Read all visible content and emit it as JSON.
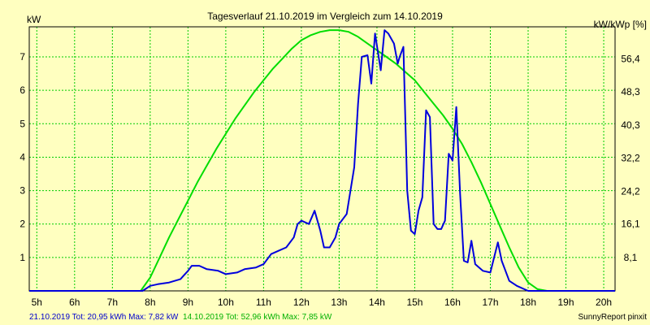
{
  "chart_data": {
    "type": "line",
    "title": "Tagesverlauf 21.10.2019 im Vergleich zum 14.10.2019",
    "ylabel_left": "kW",
    "ylabel_right": "kW/kWp [%]",
    "x_ticks": [
      "5h",
      "6h",
      "7h",
      "8h",
      "9h",
      "10h",
      "11h",
      "12h",
      "13h",
      "14h",
      "15h",
      "16h",
      "17h",
      "18h",
      "19h",
      "20h"
    ],
    "xlim": [
      4.8,
      20.3
    ],
    "ylim": [
      0,
      7.9
    ],
    "y_ticks_left": [
      1,
      2,
      3,
      4,
      5,
      6,
      7
    ],
    "y_ticks_right": [
      {
        "value": 1.0,
        "label": "8,1"
      },
      {
        "value": 2.0,
        "label": "16,1"
      },
      {
        "value": 2.98,
        "label": "24,2"
      },
      {
        "value": 3.97,
        "label": "32,2"
      },
      {
        "value": 4.96,
        "label": "40,3"
      },
      {
        "value": 5.95,
        "label": "48,3"
      },
      {
        "value": 6.94,
        "label": "56,4"
      }
    ],
    "grid": true,
    "series": [
      {
        "color": "#00dd00",
        "x": [
          4.8,
          7.0,
          7.75,
          8.0,
          8.25,
          8.5,
          8.75,
          9.0,
          9.25,
          9.5,
          9.75,
          10.0,
          10.25,
          10.5,
          10.75,
          11.0,
          11.25,
          11.5,
          11.75,
          12.0,
          12.25,
          12.5,
          12.75,
          13.0,
          13.25,
          13.5,
          13.75,
          14.0,
          14.25,
          14.5,
          14.75,
          15.0,
          15.25,
          15.5,
          15.75,
          16.0,
          16.25,
          16.5,
          16.75,
          17.0,
          17.25,
          17.5,
          17.75,
          18.0,
          18.25,
          18.5,
          18.75,
          19.0,
          20.3
        ],
        "values": [
          0,
          0,
          0,
          0.4,
          1.0,
          1.6,
          2.15,
          2.7,
          3.25,
          3.75,
          4.25,
          4.7,
          5.15,
          5.55,
          5.95,
          6.3,
          6.65,
          6.95,
          7.25,
          7.5,
          7.65,
          7.75,
          7.8,
          7.8,
          7.75,
          7.6,
          7.4,
          7.2,
          7.0,
          6.8,
          6.55,
          6.3,
          5.95,
          5.6,
          5.25,
          4.85,
          4.4,
          3.85,
          3.25,
          2.6,
          1.95,
          1.3,
          0.7,
          0.25,
          0.05,
          0,
          0,
          0,
          0
        ]
      },
      {
        "color": "#0000dd",
        "x": [
          4.8,
          7.8,
          8.0,
          8.2,
          8.5,
          8.8,
          9.0,
          9.1,
          9.3,
          9.5,
          9.8,
          10.0,
          10.3,
          10.5,
          10.8,
          11.0,
          11.2,
          11.4,
          11.6,
          11.8,
          11.9,
          12.0,
          12.2,
          12.35,
          12.5,
          12.6,
          12.75,
          12.9,
          13.0,
          13.2,
          13.4,
          13.5,
          13.6,
          13.75,
          13.85,
          13.95,
          14.1,
          14.2,
          14.3,
          14.45,
          14.55,
          14.6,
          14.7,
          14.8,
          14.9,
          15.0,
          15.1,
          15.2,
          15.3,
          15.4,
          15.5,
          15.6,
          15.7,
          15.8,
          15.9,
          16.0,
          16.1,
          16.2,
          16.3,
          16.4,
          16.5,
          16.6,
          16.8,
          17.0,
          17.2,
          17.3,
          17.5,
          17.7,
          18.0,
          18.3,
          20.3
        ],
        "values": [
          0,
          0,
          0.15,
          0.2,
          0.25,
          0.35,
          0.6,
          0.75,
          0.75,
          0.65,
          0.6,
          0.5,
          0.55,
          0.65,
          0.7,
          0.8,
          1.1,
          1.2,
          1.3,
          1.6,
          2.0,
          2.1,
          2.0,
          2.4,
          1.8,
          1.3,
          1.3,
          1.6,
          2.0,
          2.3,
          3.7,
          5.6,
          7.0,
          7.05,
          6.2,
          7.7,
          6.6,
          7.8,
          7.7,
          7.4,
          6.8,
          7.0,
          7.3,
          3.0,
          1.8,
          1.7,
          2.4,
          2.8,
          5.4,
          5.2,
          2.0,
          1.85,
          1.85,
          2.1,
          4.1,
          3.9,
          5.5,
          2.9,
          0.9,
          0.85,
          1.5,
          0.8,
          0.6,
          0.55,
          1.45,
          0.9,
          0.3,
          0.15,
          0,
          0,
          0
        ]
      }
    ]
  },
  "footer": {
    "left_blue": "21.10.2019 Tot: 20,95 kWh Max: 7,82 kW",
    "left_green": "14.10.2019 Tot: 52,96 kWh Max: 7,85 kW",
    "right": "SunnyReport pinxit"
  },
  "colors": {
    "background": "#ffffc0",
    "grid": "#00cc00",
    "series_today": "#0000dd",
    "series_compare": "#00dd00"
  }
}
